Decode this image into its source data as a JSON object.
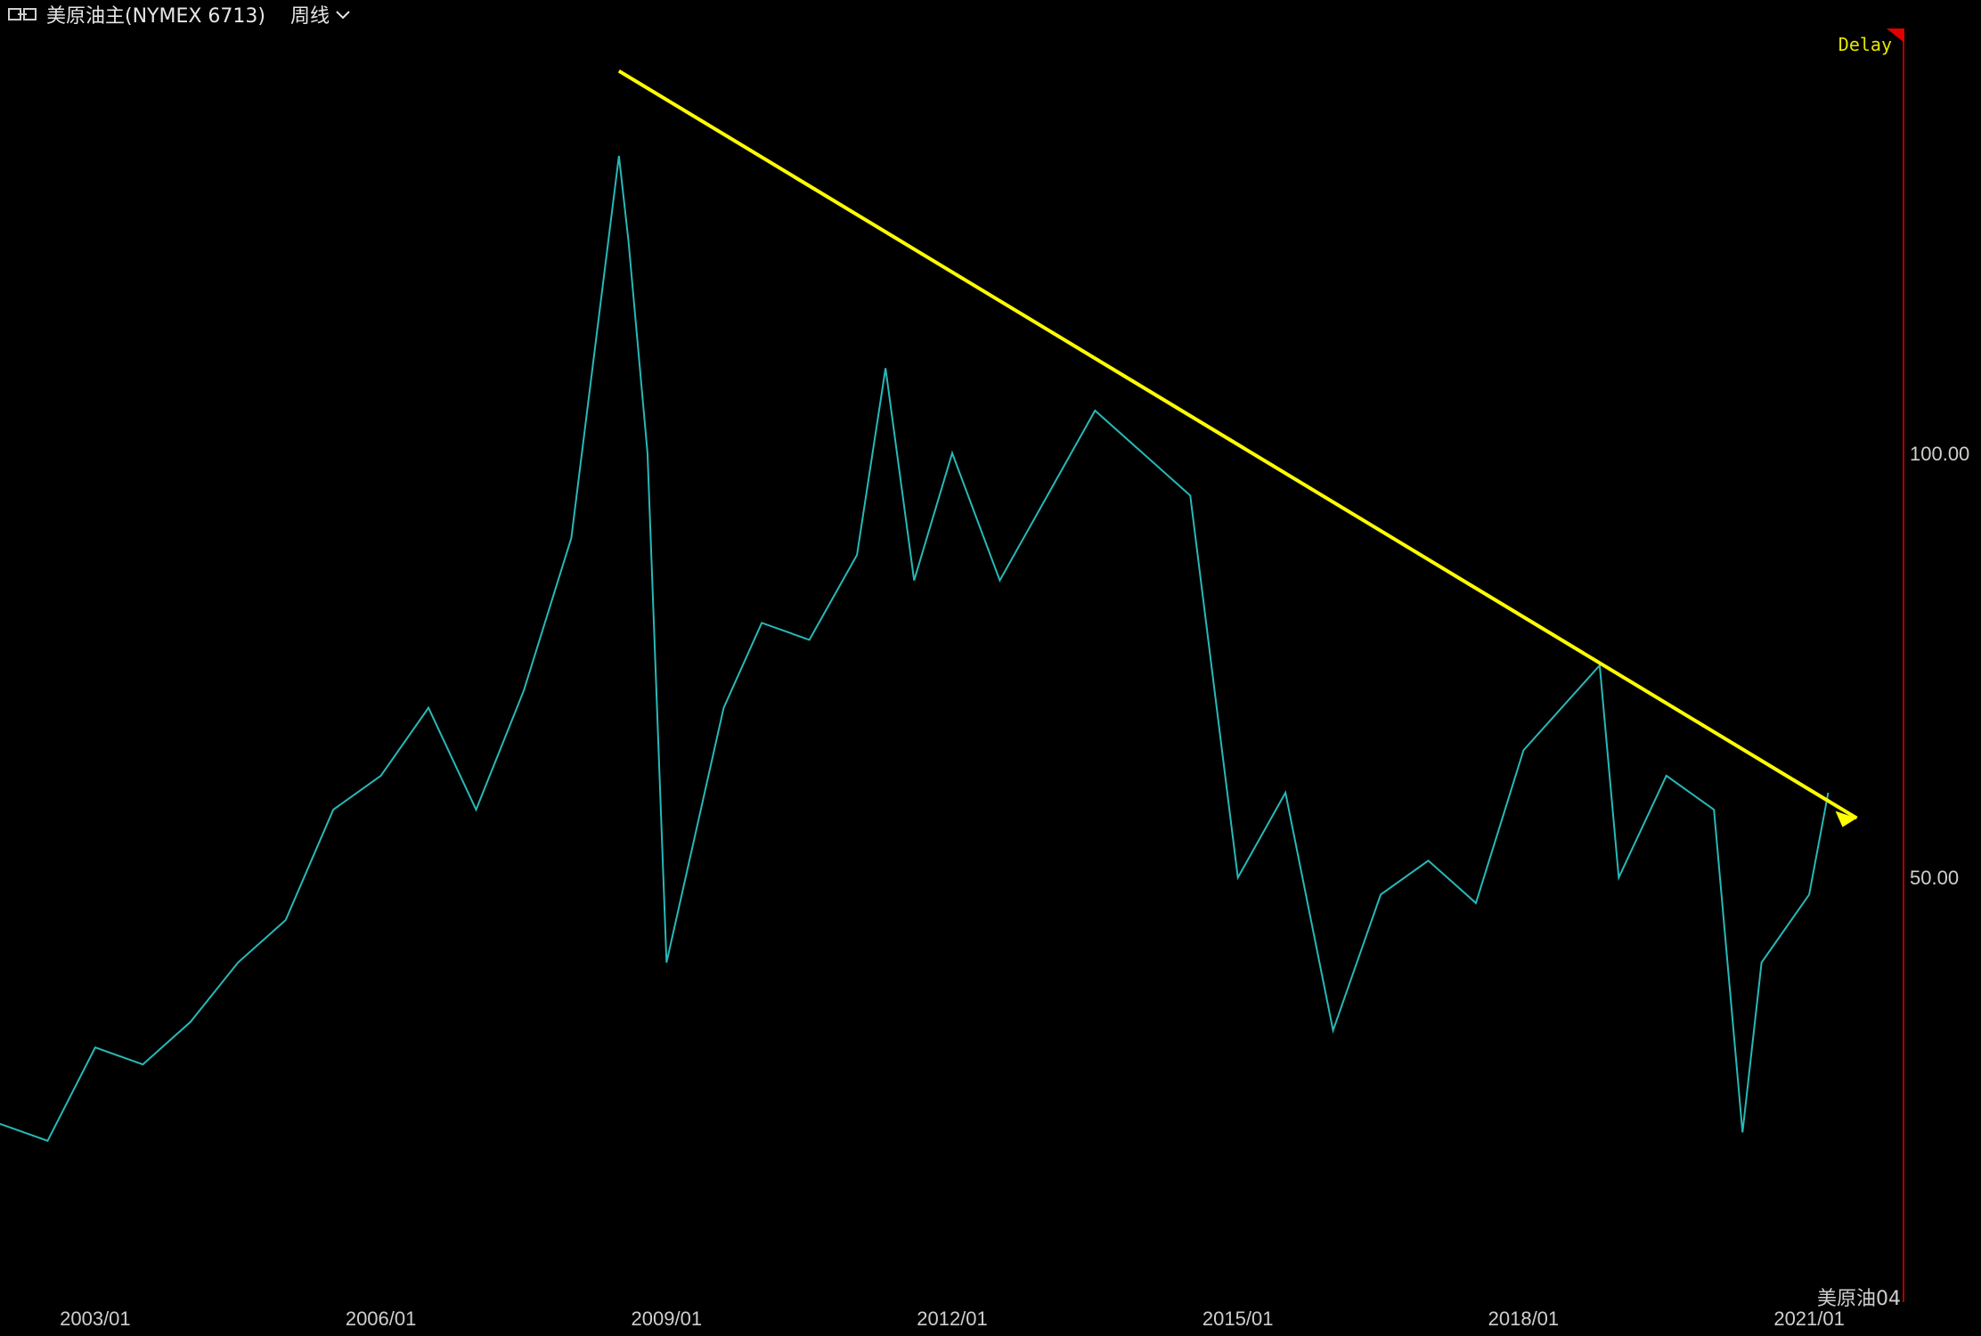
{
  "header": {
    "title": "美原油主(NYMEX 6713)",
    "period": "周线",
    "icons": {
      "connect": "link-icon",
      "period_dropdown": "chevron-down-icon"
    }
  },
  "badge": {
    "delay": "Delay"
  },
  "footer": {
    "contract_label": "美原油04"
  },
  "colors": {
    "background": "#000000",
    "up": "#d23030",
    "down": "#28b8b8",
    "trend": "#ffff00",
    "border": "#b00000"
  },
  "chart_data": {
    "type": "line",
    "title": "",
    "xlabel": "",
    "ylabel": "",
    "x_tick_labels": [
      "2003/01",
      "2006/01",
      "2009/01",
      "2012/01",
      "2015/01",
      "2018/01",
      "2021/01"
    ],
    "y_tick_labels": [
      "100.00",
      "50.00"
    ],
    "ylim": [
      0,
      150
    ],
    "x": [
      2002.0,
      2002.5,
      2003.0,
      2003.5,
      2004.0,
      2004.5,
      2005.0,
      2005.5,
      2006.0,
      2006.5,
      2007.0,
      2007.5,
      2008.0,
      2008.5,
      2008.6,
      2008.8,
      2009.0,
      2009.3,
      2009.6,
      2010.0,
      2010.5,
      2011.0,
      2011.3,
      2011.6,
      2012.0,
      2012.5,
      2013.0,
      2013.5,
      2014.0,
      2014.5,
      2015.0,
      2015.5,
      2016.0,
      2016.5,
      2017.0,
      2017.5,
      2018.0,
      2018.8,
      2019.0,
      2019.5,
      2020.0,
      2020.3,
      2020.5,
      2021.0,
      2021.2
    ],
    "series": [
      {
        "values": [
          21,
          19,
          30,
          28,
          33,
          40,
          45,
          58,
          62,
          70,
          58,
          72,
          90,
          135,
          125,
          100,
          40,
          55,
          70,
          80,
          78,
          88,
          110,
          85,
          100,
          85,
          95,
          105,
          100,
          95,
          50,
          60,
          32,
          48,
          52,
          47,
          65,
          75,
          50,
          62,
          58,
          20,
          40,
          48,
          60
        ]
      }
    ],
    "trend_line": {
      "from": {
        "x": 2008.5,
        "y": 145
      },
      "to": {
        "x": 2021.5,
        "y": 57
      }
    }
  }
}
